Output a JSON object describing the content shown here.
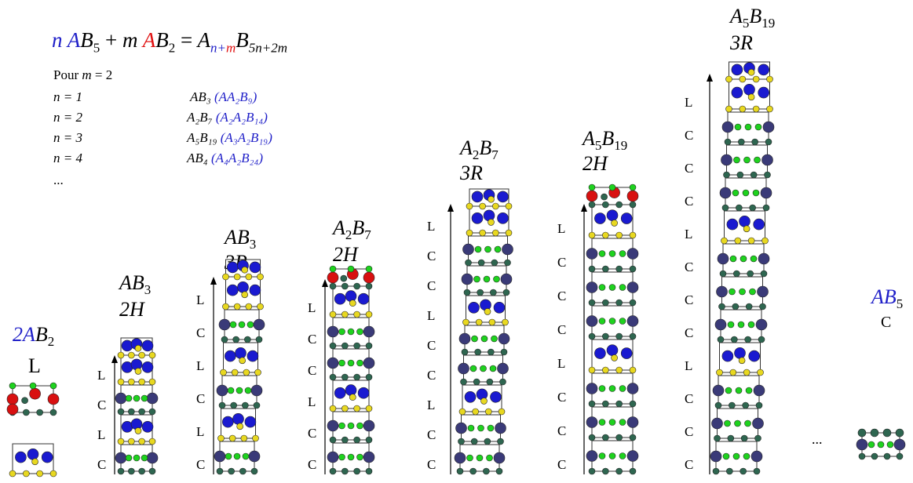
{
  "formula": {
    "n": "n",
    "A1": "A",
    "B5": "B",
    "s5": "5",
    "plus": "+",
    "m": "m",
    "A2": "A",
    "B2": "B",
    "s2": "2",
    "eq": "=",
    "A3": "A",
    "subn": "n+",
    "subm": "m",
    "B3": "B",
    "s3": "5n+2m"
  },
  "pour": {
    "label": "Pour",
    "m": "m",
    "eq": "= 2"
  },
  "examples": [
    {
      "n": "n = 1",
      "formula": "AB₃",
      "paren": "(AA₂B₉)"
    },
    {
      "n": "n = 2",
      "formula": "A₂B₇",
      "paren": "(A₂A₂B₁₄)"
    },
    {
      "n": "n = 3",
      "formula": "A₅B₁₉",
      "paren": "(A₃A₂B₁₉)"
    },
    {
      "n": "n = 4",
      "formula": "AB₄",
      "paren": "(A₄A₂B₂₄)"
    }
  ],
  "ellipsis_top": "...",
  "ellipsis_right": "...",
  "structures": [
    {
      "id": "2AB2",
      "formula_a": "2A",
      "formula_b": "B",
      "sub": "2",
      "type": "L",
      "stack": []
    },
    {
      "id": "AB3-2H",
      "formula_a": "AB",
      "formula_b": "",
      "sub": "3",
      "type": "2H",
      "stack": [
        "L",
        "C",
        "L",
        "C"
      ]
    },
    {
      "id": "AB3-3R",
      "formula_a": "AB",
      "formula_b": "",
      "sub": "3",
      "type": "3R",
      "stack": [
        "L",
        "C",
        "L",
        "C",
        "L",
        "C"
      ]
    },
    {
      "id": "A2B7-2H",
      "formula_a": "A",
      "sub1": "2",
      "formula_b": "B",
      "sub": "7",
      "type": "2H",
      "stack": [
        "L",
        "C",
        "C",
        "L",
        "C",
        "C"
      ]
    },
    {
      "id": "A2B7-3R",
      "formula_a": "A",
      "sub1": "2",
      "formula_b": "B",
      "sub": "7",
      "type": "3R",
      "stack": [
        "L",
        "C",
        "C",
        "L",
        "C",
        "C",
        "L",
        "C",
        "C"
      ]
    },
    {
      "id": "A5B19-2H",
      "formula_a": "A",
      "sub1": "5",
      "formula_b": "B",
      "sub": "19",
      "type": "2H",
      "stack": [
        "L",
        "C",
        "C",
        "C",
        "L",
        "C",
        "C",
        "C"
      ]
    },
    {
      "id": "A5B19-3R",
      "formula_a": "A",
      "sub1": "5",
      "formula_b": "B",
      "sub": "19",
      "type": "3R",
      "stack": [
        "L",
        "C",
        "C",
        "C",
        "L",
        "C",
        "C",
        "C",
        "L",
        "C",
        "C",
        "C"
      ]
    },
    {
      "id": "AB5",
      "formula_a": "AB",
      "formula_b": "",
      "sub": "5",
      "type": "C",
      "stack": []
    }
  ],
  "colors": {
    "A_large": "#1a1ad0",
    "A_red": "#d81010",
    "B_yellow": "#e8d820",
    "B_green": "#1ed21e",
    "B_dark": "#2e6650",
    "A_dark": "#3a3a78"
  }
}
